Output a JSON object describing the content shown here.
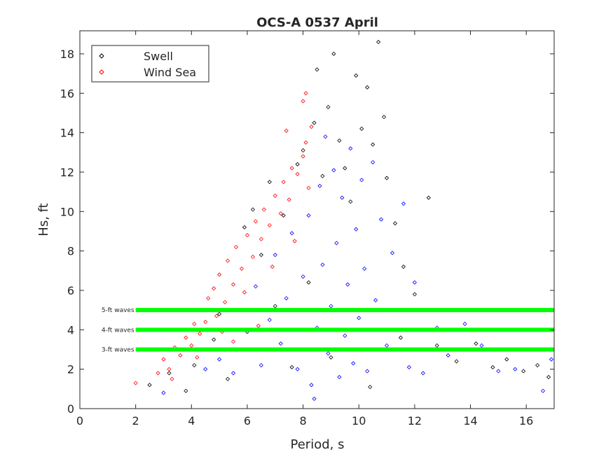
{
  "chart_data": {
    "type": "scatter",
    "title": "OCS-A 0537 April",
    "xlabel": "Period, s",
    "ylabel": "Hs, ft",
    "xlim": [
      0,
      17
    ],
    "ylim": [
      0,
      19.17
    ],
    "xticks": [
      0,
      2,
      4,
      6,
      8,
      10,
      12,
      14,
      16
    ],
    "yticks": [
      0,
      2,
      4,
      6,
      8,
      10,
      12,
      14,
      16,
      18
    ],
    "grid": false,
    "legend": {
      "placement": "top-left",
      "entries": [
        {
          "label": "Swell",
          "color": "#000000"
        },
        {
          "label": "Wind Sea",
          "color": "#ff0000"
        }
      ]
    },
    "marker": "diamond",
    "series": [
      {
        "name": "Swell",
        "color": "#000000",
        "points": [
          [
            2.5,
            1.2
          ],
          [
            3.2,
            1.8
          ],
          [
            4.1,
            2.2
          ],
          [
            4.8,
            3.5
          ],
          [
            5.3,
            1.5
          ],
          [
            5.9,
            9.2
          ],
          [
            6.2,
            10.1
          ],
          [
            6.5,
            7.8
          ],
          [
            6.8,
            11.5
          ],
          [
            7.0,
            5.2
          ],
          [
            7.3,
            9.8
          ],
          [
            7.6,
            2.1
          ],
          [
            7.8,
            12.4
          ],
          [
            8.0,
            13.1
          ],
          [
            8.2,
            6.4
          ],
          [
            8.4,
            14.5
          ],
          [
            8.5,
            17.2
          ],
          [
            8.7,
            11.8
          ],
          [
            8.9,
            15.3
          ],
          [
            9.1,
            18.0
          ],
          [
            9.3,
            13.6
          ],
          [
            9.5,
            12.2
          ],
          [
            9.7,
            10.5
          ],
          [
            9.9,
            16.9
          ],
          [
            10.1,
            14.2
          ],
          [
            10.3,
            16.3
          ],
          [
            10.5,
            13.4
          ],
          [
            10.7,
            18.6
          ],
          [
            10.9,
            14.8
          ],
          [
            11.0,
            11.7
          ],
          [
            11.3,
            9.4
          ],
          [
            11.6,
            7.2
          ],
          [
            12.0,
            5.8
          ],
          [
            12.5,
            10.7
          ],
          [
            12.8,
            3.2
          ],
          [
            13.5,
            2.4
          ],
          [
            14.2,
            3.3
          ],
          [
            14.8,
            2.1
          ],
          [
            15.3,
            2.5
          ],
          [
            15.9,
            1.9
          ],
          [
            16.4,
            2.2
          ],
          [
            16.8,
            1.6
          ],
          [
            5.0,
            4.8
          ],
          [
            6.0,
            3.9
          ],
          [
            9.0,
            2.6
          ],
          [
            10.4,
            1.1
          ],
          [
            11.5,
            3.6
          ],
          [
            3.8,
            0.9
          ]
        ]
      },
      {
        "name": "Wind Sea",
        "color": "#ff0000",
        "points": [
          [
            2.0,
            1.3
          ],
          [
            2.8,
            1.8
          ],
          [
            3.0,
            2.5
          ],
          [
            3.2,
            2.0
          ],
          [
            3.4,
            3.1
          ],
          [
            3.6,
            2.7
          ],
          [
            3.8,
            3.6
          ],
          [
            4.0,
            3.2
          ],
          [
            4.1,
            4.3
          ],
          [
            4.3,
            3.8
          ],
          [
            4.4,
            5.0
          ],
          [
            4.5,
            4.4
          ],
          [
            4.6,
            5.6
          ],
          [
            4.8,
            6.1
          ],
          [
            4.9,
            4.7
          ],
          [
            5.0,
            6.8
          ],
          [
            5.2,
            5.4
          ],
          [
            5.3,
            7.5
          ],
          [
            5.5,
            6.3
          ],
          [
            5.6,
            8.2
          ],
          [
            5.8,
            7.1
          ],
          [
            5.9,
            5.9
          ],
          [
            6.0,
            8.8
          ],
          [
            6.2,
            7.7
          ],
          [
            6.3,
            9.5
          ],
          [
            6.5,
            8.6
          ],
          [
            6.6,
            10.1
          ],
          [
            6.8,
            9.3
          ],
          [
            6.9,
            7.2
          ],
          [
            7.0,
            10.8
          ],
          [
            7.2,
            9.9
          ],
          [
            7.3,
            11.5
          ],
          [
            7.5,
            10.6
          ],
          [
            7.6,
            12.2
          ],
          [
            7.7,
            8.5
          ],
          [
            7.8,
            11.9
          ],
          [
            8.0,
            12.8
          ],
          [
            8.1,
            13.5
          ],
          [
            8.2,
            11.2
          ],
          [
            8.3,
            14.3
          ],
          [
            8.0,
            15.6
          ],
          [
            8.1,
            16.0
          ],
          [
            7.4,
            14.1
          ],
          [
            5.5,
            3.4
          ],
          [
            6.4,
            4.2
          ],
          [
            4.2,
            2.6
          ],
          [
            3.3,
            1.5
          ],
          [
            5.1,
            3.9
          ]
        ]
      },
      {
        "name": "",
        "color": "#0000ff",
        "points": [
          [
            5.0,
            2.5
          ],
          [
            5.5,
            1.8
          ],
          [
            6.0,
            3.0
          ],
          [
            6.3,
            6.2
          ],
          [
            6.5,
            2.2
          ],
          [
            6.8,
            4.5
          ],
          [
            7.0,
            7.8
          ],
          [
            7.2,
            3.3
          ],
          [
            7.4,
            5.6
          ],
          [
            7.6,
            8.9
          ],
          [
            7.8,
            2.0
          ],
          [
            8.0,
            6.7
          ],
          [
            8.2,
            9.8
          ],
          [
            8.3,
            1.2
          ],
          [
            8.4,
            0.5
          ],
          [
            8.5,
            4.1
          ],
          [
            8.6,
            11.3
          ],
          [
            8.7,
            7.3
          ],
          [
            8.8,
            13.8
          ],
          [
            8.9,
            2.8
          ],
          [
            9.0,
            5.2
          ],
          [
            9.1,
            12.1
          ],
          [
            9.2,
            8.4
          ],
          [
            9.3,
            1.6
          ],
          [
            9.4,
            10.7
          ],
          [
            9.5,
            3.7
          ],
          [
            9.6,
            6.3
          ],
          [
            9.7,
            13.2
          ],
          [
            9.8,
            2.3
          ],
          [
            9.9,
            9.1
          ],
          [
            10.0,
            4.6
          ],
          [
            10.1,
            11.6
          ],
          [
            10.2,
            7.1
          ],
          [
            10.3,
            1.9
          ],
          [
            10.5,
            12.5
          ],
          [
            10.6,
            5.5
          ],
          [
            10.8,
            9.6
          ],
          [
            11.0,
            3.2
          ],
          [
            11.2,
            7.9
          ],
          [
            11.4,
            5.0
          ],
          [
            11.6,
            10.4
          ],
          [
            11.8,
            2.1
          ],
          [
            12.0,
            6.4
          ],
          [
            12.3,
            1.8
          ],
          [
            12.8,
            4.1
          ],
          [
            13.2,
            2.7
          ],
          [
            13.8,
            4.3
          ],
          [
            14.4,
            3.2
          ],
          [
            15.0,
            1.9
          ],
          [
            15.6,
            2.0
          ],
          [
            16.6,
            0.9
          ],
          [
            16.9,
            2.5
          ],
          [
            4.5,
            2.0
          ],
          [
            3.0,
            0.8
          ]
        ]
      }
    ],
    "reference_lines": [
      {
        "label": "5-ft waves",
        "y": 5,
        "x_start": 2,
        "x_end": 17,
        "color": "#00ff00"
      },
      {
        "label": "4-ft waves",
        "y": 4,
        "x_start": 2,
        "x_end": 17,
        "color": "#00ff00"
      },
      {
        "label": "3-ft waves",
        "y": 3,
        "x_start": 2,
        "x_end": 17,
        "color": "#00ff00"
      }
    ]
  }
}
